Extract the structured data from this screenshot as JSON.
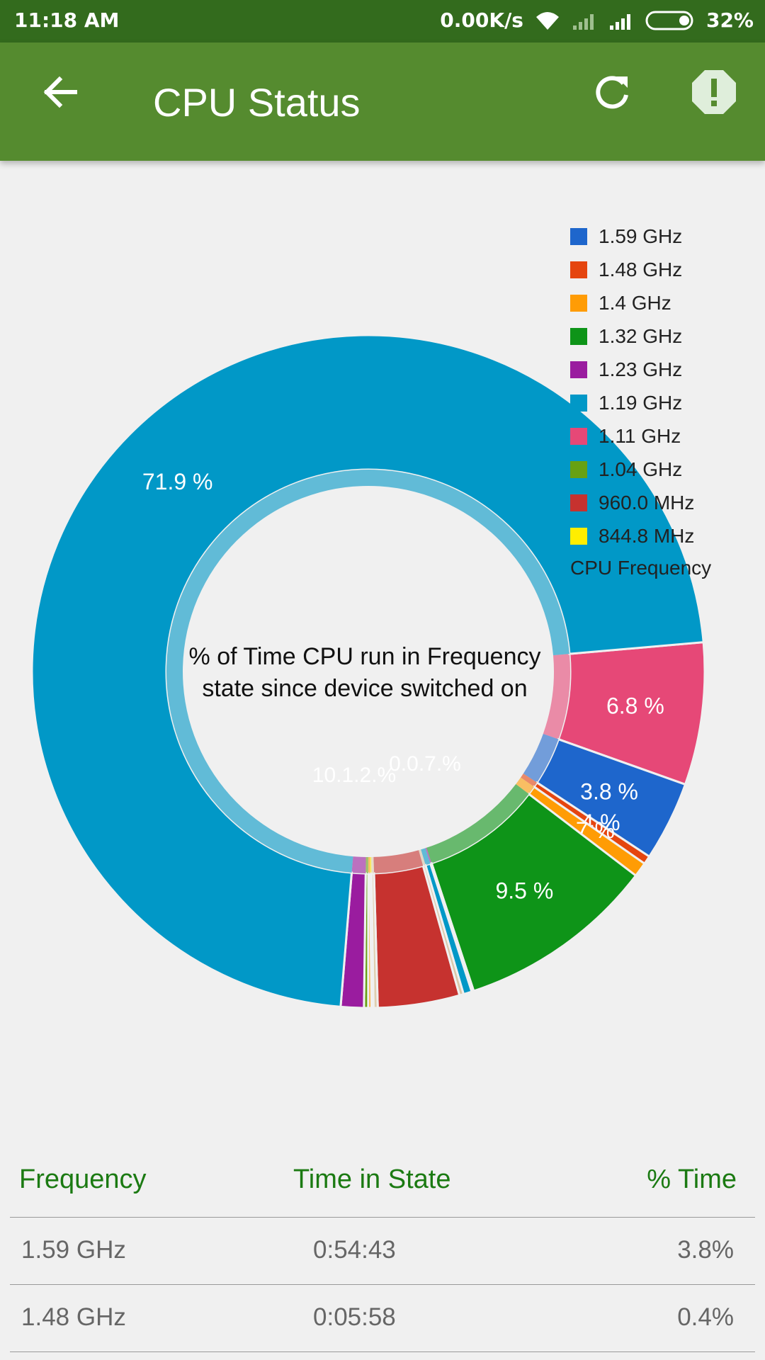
{
  "status_bar": {
    "time": "11:18 AM",
    "net_speed": "0.00K/s",
    "battery": "32%"
  },
  "app_bar": {
    "title": "CPU Status",
    "back_icon": "arrow-left-icon",
    "refresh_icon": "refresh-icon",
    "alert_icon": "alert-octagon-icon"
  },
  "chart_data": {
    "type": "pie",
    "center_text": [
      "% of Time CPU run in Frequency",
      "state since device switched on"
    ],
    "legend_title": "CPU Frequency",
    "legend": [
      {
        "label": "1.59 GHz",
        "color": "#1e66cc"
      },
      {
        "label": "1.48 GHz",
        "color": "#e5450f"
      },
      {
        "label": "1.4 GHz",
        "color": "#ff9c05"
      },
      {
        "label": "1.32 GHz",
        "color": "#0e9418"
      },
      {
        "label": "1.23 GHz",
        "color": "#9a1c9f"
      },
      {
        "label": "1.19 GHz",
        "color": "#0198c7"
      },
      {
        "label": "1.11 GHz",
        "color": "#e64877"
      },
      {
        "label": "1.04 GHz",
        "color": "#67a112"
      },
      {
        "label": "960.0 MHz",
        "color": "#c6322f"
      },
      {
        "label": "844.8 MHz",
        "color": "#ffee00"
      }
    ],
    "slices": [
      {
        "name": "1.11 GHz",
        "value": 6.8,
        "label": "6.8 %",
        "color": "#e64877"
      },
      {
        "name": "1.59 GHz",
        "value": 3.8,
        "label": "3.8 %",
        "color": "#1e66cc"
      },
      {
        "name": "1.48 GHz",
        "value": 0.4,
        "label": "0.4 %",
        "color": "#e5450f"
      },
      {
        "name": "1.4 GHz",
        "value": 0.7,
        "label": "0.7 %",
        "color": "#ff9c05"
      },
      {
        "name": "1.32 GHz",
        "value": 9.5,
        "label": "9.5 %",
        "color": "#0e9418"
      },
      {
        "name": "slice-purple-small",
        "value": 0.1,
        "label": "",
        "color": "#9a1c9f"
      },
      {
        "name": "slice-cyan-small",
        "value": 0.4,
        "label": "",
        "color": "#0198c7"
      },
      {
        "name": "slice-beige-1",
        "value": 0.2,
        "label": "",
        "color": "#d9c7a8"
      },
      {
        "name": "960.0 MHz",
        "value": 3.9,
        "label": "",
        "color": "#c6322f"
      },
      {
        "name": "slice-beige-2",
        "value": 0.2,
        "label": "",
        "color": "#e0cfb0"
      },
      {
        "name": "slice-yellow-small",
        "value": 0.1,
        "label": "",
        "color": "#ffee00"
      },
      {
        "name": "slice-orange-small",
        "value": 0.15,
        "label": "",
        "color": "#ff9c05"
      },
      {
        "name": "1.04 GHz",
        "value": 0.2,
        "label": "",
        "color": "#67a112"
      },
      {
        "name": "1.23 GHz",
        "value": 1.1,
        "label": "",
        "color": "#9a1c9f"
      },
      {
        "name": "1.19 GHz",
        "value": 71.9,
        "label": "71.9 %",
        "color": "#0198c7"
      }
    ],
    "overlap_labels": [
      "10.1.2.%",
      "0.0.7.%"
    ]
  },
  "table": {
    "headers": {
      "frequency": "Frequency",
      "time": "Time in State",
      "pct": "% Time"
    },
    "rows": [
      {
        "frequency": "1.59 GHz",
        "time": "0:54:43",
        "pct": "3.8%"
      },
      {
        "frequency": "1.48 GHz",
        "time": "0:05:58",
        "pct": "0.4%"
      }
    ]
  }
}
